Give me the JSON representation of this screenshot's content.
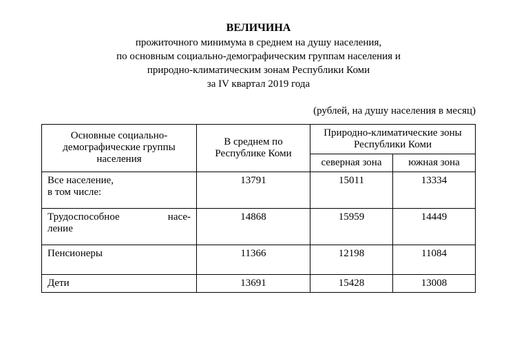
{
  "title": {
    "main": "ВЕЛИЧИНА",
    "line1": "прожиточного минимума в среднем на душу населения,",
    "line2": "по основным социально-демографическим группам населения и",
    "line3": "природно-климатическим зонам Республики Коми",
    "line4": "за IV квартал 2019 года"
  },
  "unit_note": "(рублей, на душу населения в месяц)",
  "table": {
    "header": {
      "group": "Основные социально-демографические группы населения",
      "avg": "В среднем по Республике Коми",
      "zones_top": "Природно-климатические зоны Республики Коми",
      "north": "северная зона",
      "south": "южная зона"
    },
    "rows": [
      {
        "label_html": "Все население,<br>в том числе:",
        "avg": "13791",
        "north": "15011",
        "south": "13334"
      },
      {
        "label_html": "<span class=\"justify\" style=\"display:block;\">Трудоспособное&nbsp;&nbsp;&nbsp;&nbsp;насе-</span>ление",
        "avg": "14868",
        "north": "15959",
        "south": "14449"
      },
      {
        "label_html": "Пенсионеры",
        "avg": "11366",
        "north": "12198",
        "south": "11084"
      },
      {
        "label_html": "Дети",
        "avg": "13691",
        "north": "15428",
        "south": "13008"
      }
    ]
  }
}
